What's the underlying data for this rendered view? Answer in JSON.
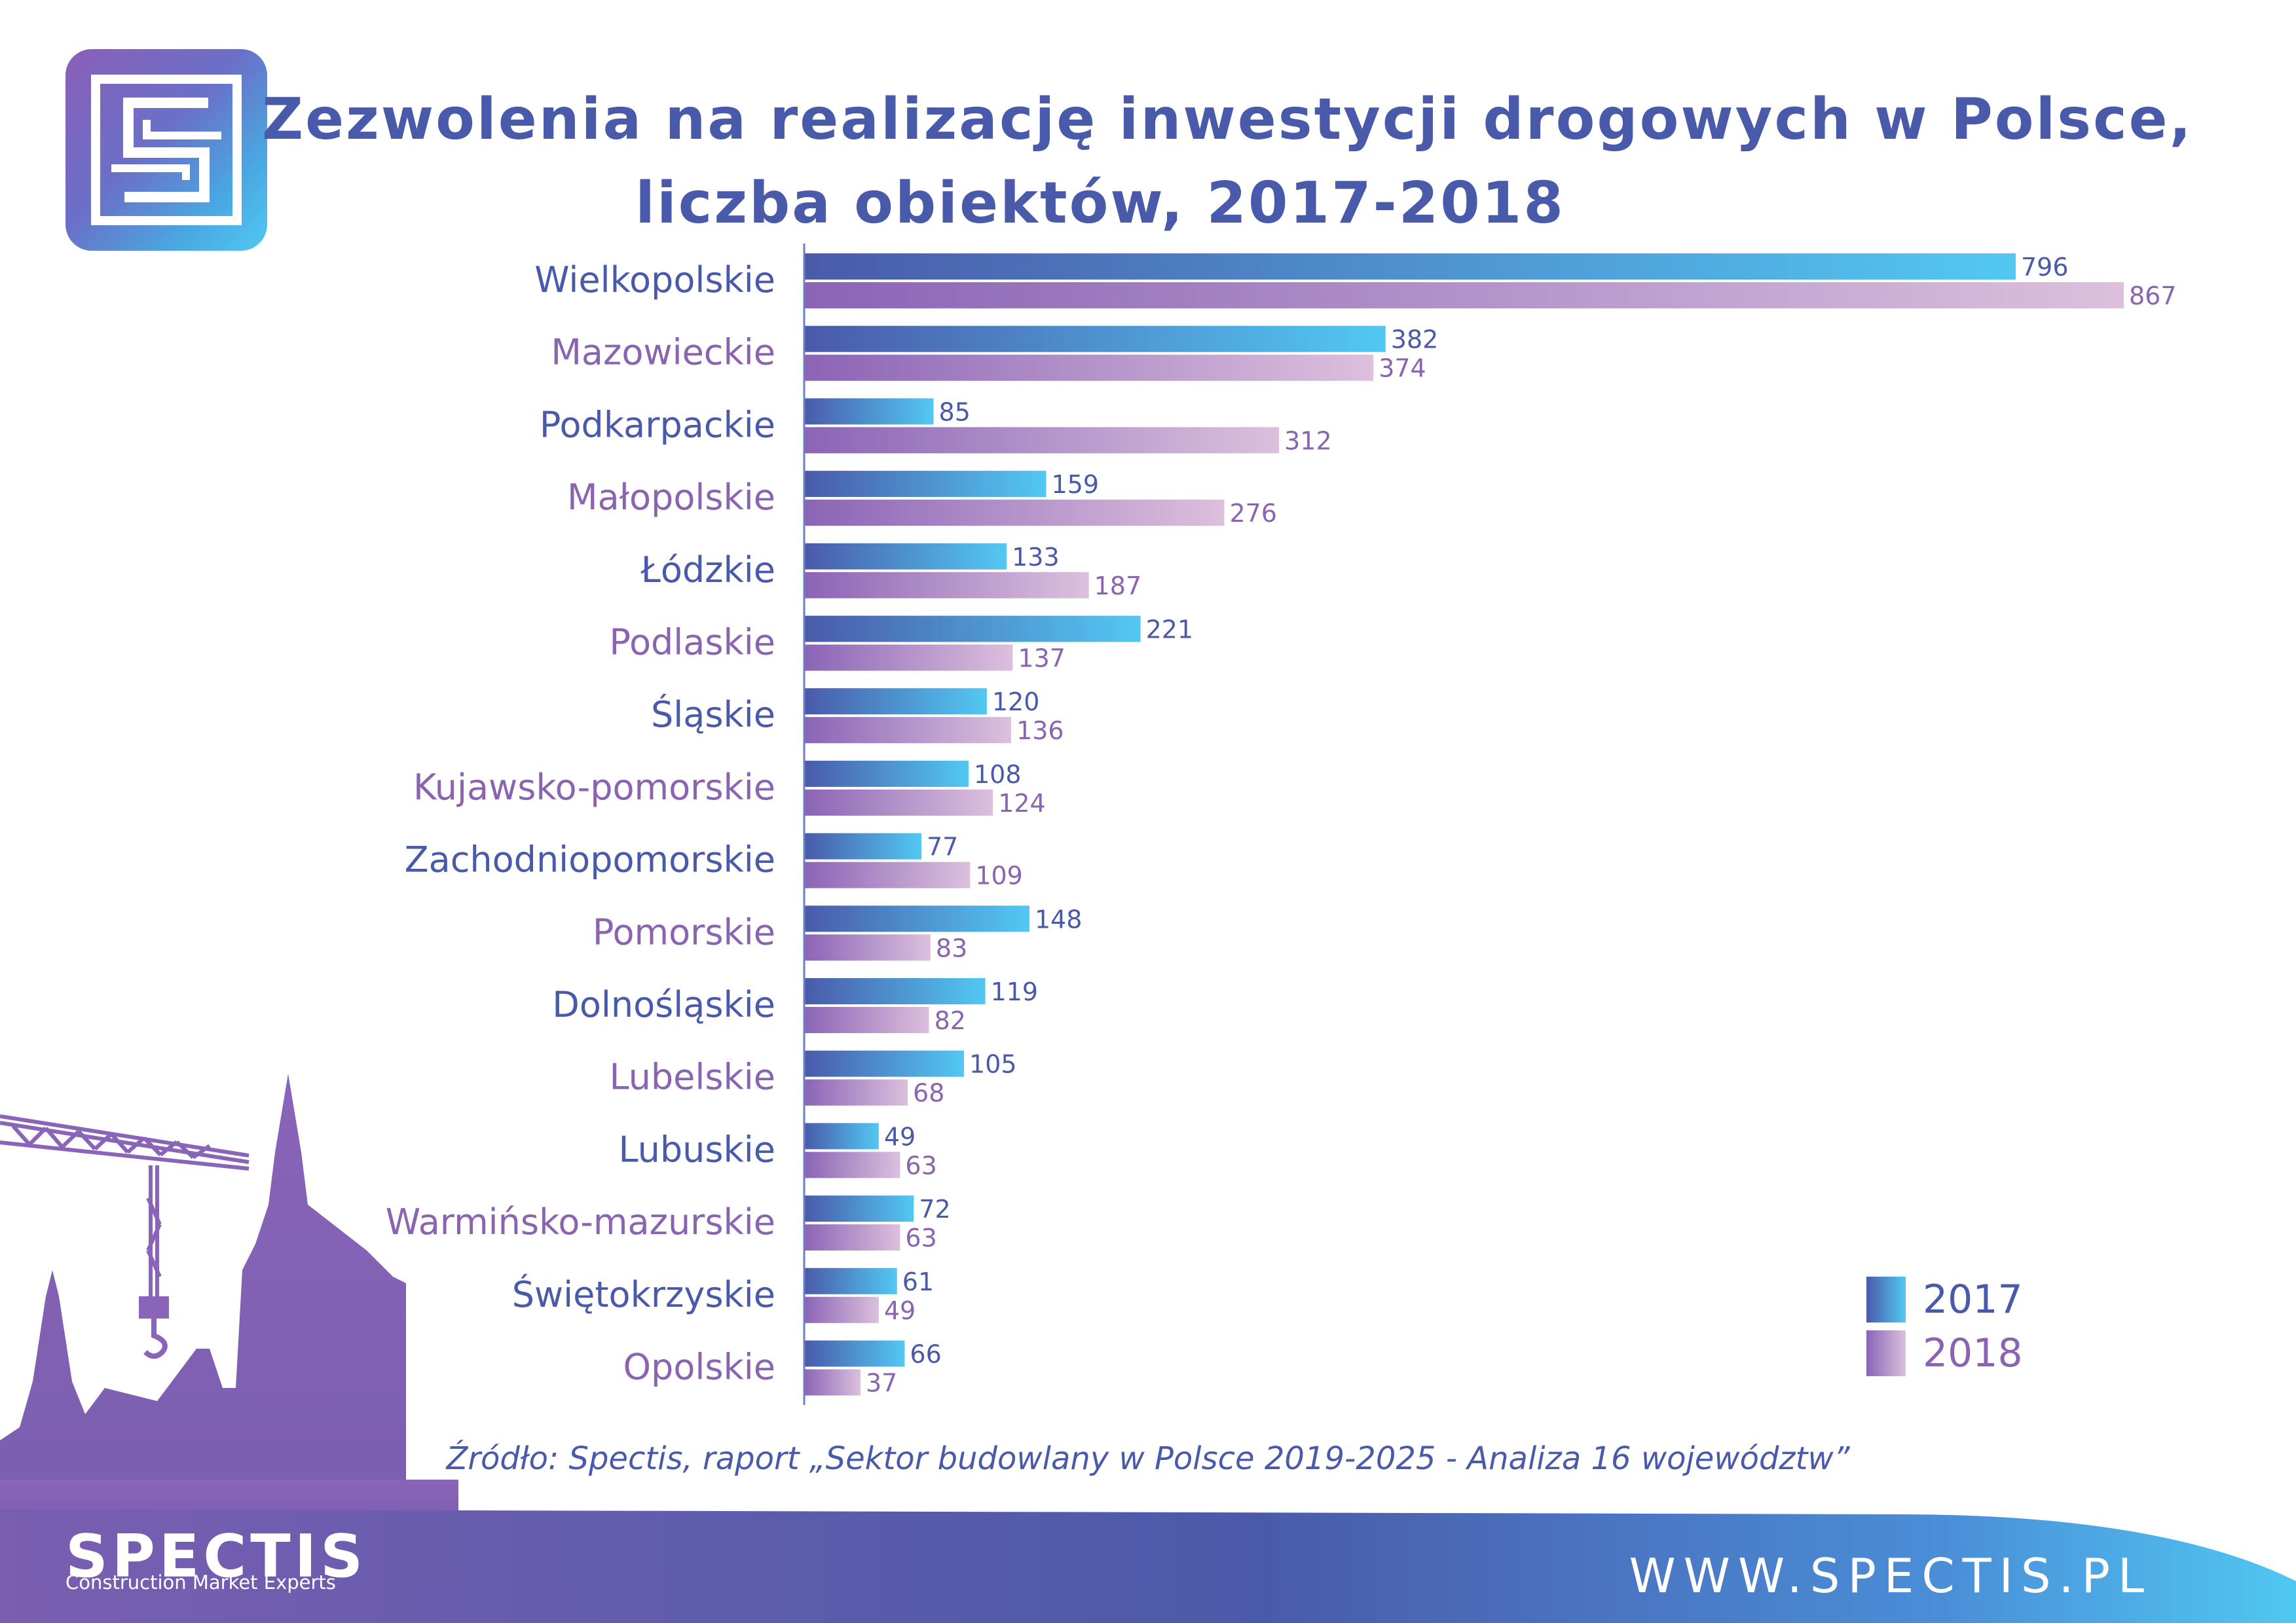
{
  "title_line1": "Zezwolenia na realizację inwestycji drogowych w Polsce,",
  "title_line2": "liczba obiektów, 2017-2018",
  "source": "Źródło: Spectis, raport „Sektor budowlany w Polsce 2019-2025 - Analiza 16 województw”",
  "brand": "SPECTIS",
  "tagline": "Construction Market Experts",
  "website": "WWW.SPECTIS.PL",
  "colors": {
    "text_blue": "#4a5aaa",
    "text_purple": "#8a64b0",
    "bar2017_start": "#4a5aaa",
    "bar2017_end": "#52c8f3",
    "bar2018_start": "#8b64b6",
    "bar2018_end": "#dcc0dd"
  },
  "chart_data": {
    "type": "bar",
    "orientation": "horizontal",
    "categories": [
      "Wielkopolskie",
      "Mazowieckie",
      "Podkarpackie",
      "Małopolskie",
      "Łódzkie",
      "Podlaskie",
      "Śląskie",
      "Kujawsko-pomorskie",
      "Zachodniopomorskie",
      "Pomorskie",
      "Dolnośląskie",
      "Lubelskie",
      "Lubuskie",
      "Warmińsko-mazurskie",
      "Świętokrzyskie",
      "Opolskie"
    ],
    "series": [
      {
        "name": "2017",
        "values": [
          796,
          382,
          85,
          159,
          133,
          221,
          120,
          108,
          77,
          148,
          119,
          105,
          49,
          72,
          61,
          66
        ]
      },
      {
        "name": "2018",
        "values": [
          867,
          374,
          312,
          276,
          187,
          137,
          136,
          124,
          109,
          83,
          82,
          68,
          63,
          63,
          49,
          37
        ]
      }
    ],
    "xlim": [
      0,
      867
    ],
    "legend": "bottom-right",
    "grid": false
  }
}
